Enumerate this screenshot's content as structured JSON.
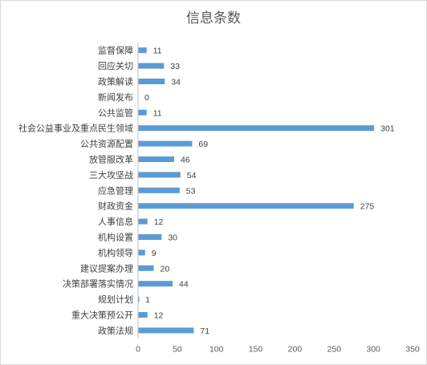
{
  "chart_data": {
    "type": "bar",
    "orientation": "horizontal",
    "title": "信息条数",
    "xlabel": "",
    "ylabel": "",
    "xlim": [
      0,
      350
    ],
    "xticks": [
      0,
      50,
      100,
      150,
      200,
      250,
      300,
      350
    ],
    "grid": false,
    "legend": "none",
    "bar_color": "#5b9bd5",
    "categories": [
      "监督保障",
      "回应关切",
      "政策解读",
      "新闻发布",
      "公共监管",
      "社会公益事业及重点民生领域",
      "公共资源配置",
      "放管服改革",
      "三大攻坚战",
      "应急管理",
      "财政资金",
      "人事信息",
      "机构设置",
      "机构领导",
      "建议提案办理",
      "决策部署落实情况",
      "规划计划",
      "重大决策预公开",
      "政策法规"
    ],
    "values": [
      11,
      33,
      34,
      0,
      11,
      301,
      69,
      46,
      54,
      53,
      275,
      12,
      30,
      9,
      20,
      44,
      1,
      12,
      71
    ]
  }
}
